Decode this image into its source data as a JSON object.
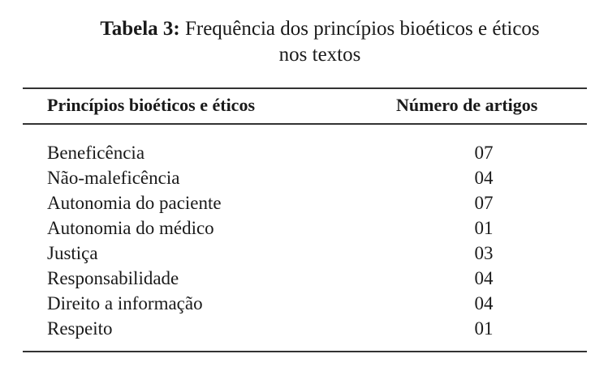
{
  "caption": {
    "label": "Tabela 3:",
    "line1": "Frequência dos princípios bioéticos e éticos",
    "line2": "nos textos"
  },
  "table": {
    "headers": [
      "Princípios bioéticos e éticos",
      "Número de artigos"
    ],
    "rows": [
      {
        "name": "Beneficência",
        "count": "07"
      },
      {
        "name": "Não-maleficência",
        "count": "04"
      },
      {
        "name": "Autonomia do paciente",
        "count": "07"
      },
      {
        "name": "Autonomia do médico",
        "count": "01"
      },
      {
        "name": "Justiça",
        "count": "03"
      },
      {
        "name": "Responsabilidade",
        "count": "04"
      },
      {
        "name": "Direito a informação",
        "count": "04"
      },
      {
        "name": "Respeito",
        "count": "01"
      }
    ]
  }
}
